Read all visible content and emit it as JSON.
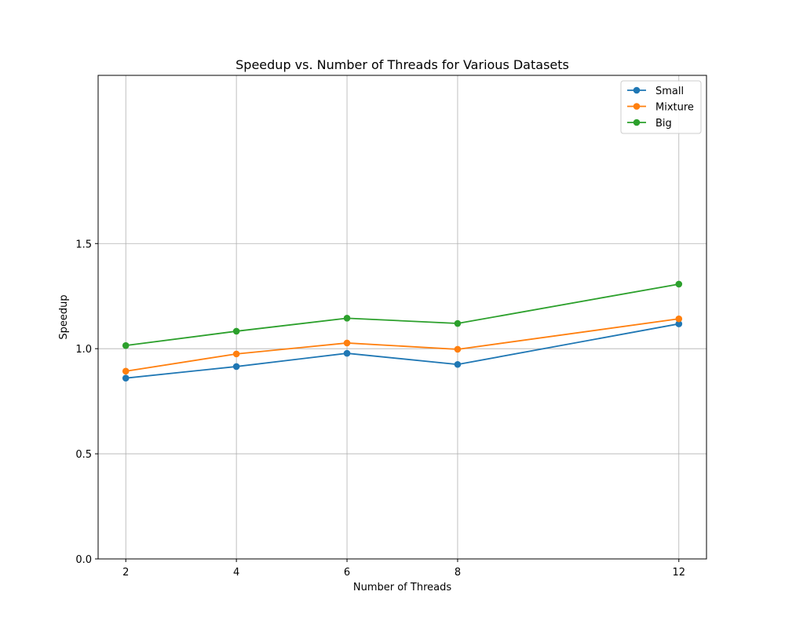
{
  "chart_data": {
    "type": "line",
    "title": "Speedup vs. Number of Threads for Various Datasets",
    "xlabel": "Number of Threads",
    "ylabel": "Speedup",
    "x": [
      2,
      4,
      6,
      8,
      12
    ],
    "xticks": [
      2,
      4,
      6,
      8,
      12
    ],
    "xtick_labels": [
      "2",
      "4",
      "6",
      "8",
      "12"
    ],
    "xlim": [
      1.5,
      12.5
    ],
    "ylim": [
      0.0,
      2.3
    ],
    "yticks": [
      0.0,
      0.5,
      1.0,
      1.5
    ],
    "ytick_labels": [
      "0.0",
      "0.5",
      "1.0",
      "1.5"
    ],
    "grid": true,
    "legend_position": "top-right",
    "series": [
      {
        "name": "Small",
        "color": "#1f77b4",
        "values": [
          0.86,
          0.915,
          0.978,
          0.925,
          1.118
        ]
      },
      {
        "name": "Mixture",
        "color": "#ff7f0e",
        "values": [
          0.893,
          0.975,
          1.027,
          0.997,
          1.142
        ]
      },
      {
        "name": "Big",
        "color": "#2ca02c",
        "values": [
          1.015,
          1.083,
          1.145,
          1.12,
          1.307
        ]
      }
    ]
  }
}
